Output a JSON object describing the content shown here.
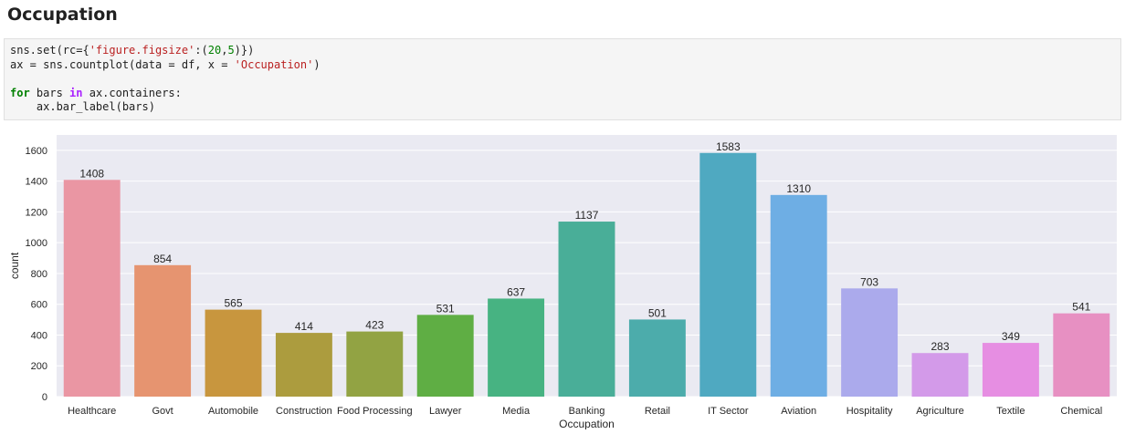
{
  "heading": "Occupation",
  "code": {
    "line1": {
      "a": "sns.set(rc={",
      "b": "'figure.figsize'",
      "c": ":(",
      "d": "20",
      "e": ",",
      "f": "5",
      "g": ")})"
    },
    "line2": {
      "a": "ax = sns.countplot(data = df, x = ",
      "b": "'Occupation'",
      "c": ")"
    },
    "line4": {
      "a": "for",
      "b": " bars ",
      "c": "in",
      "d": " ax.containers:"
    },
    "line5": {
      "a": "    ax.bar_label(bars)"
    }
  },
  "chart_data": {
    "type": "bar",
    "categories": [
      "Healthcare",
      "Govt",
      "Automobile",
      "Construction",
      "Food Processing",
      "Lawyer",
      "Media",
      "Banking",
      "Retail",
      "IT Sector",
      "Aviation",
      "Hospitality",
      "Agriculture",
      "Textile",
      "Chemical"
    ],
    "values": [
      1408,
      854,
      565,
      414,
      423,
      531,
      637,
      1137,
      501,
      1583,
      1310,
      703,
      283,
      349,
      541
    ],
    "labels": [
      "1408",
      "854",
      "565",
      "414",
      "423",
      "531",
      "637",
      "1137",
      "501",
      "1583",
      "1310",
      "703",
      "283",
      "349",
      "541"
    ],
    "colors": [
      "#ea96a3",
      "#e69470",
      "#c8963e",
      "#ac9c3e",
      "#92a343",
      "#5fae44",
      "#47b382",
      "#49ae98",
      "#4cacab",
      "#4fa9c1",
      "#6eaee4",
      "#abaaec",
      "#d39ae9",
      "#e68ee2",
      "#e790c2"
    ],
    "xlabel": "Occupation",
    "ylabel": "count",
    "ylim": [
      0,
      1700
    ],
    "yticks": [
      0,
      200,
      400,
      600,
      800,
      1000,
      1200,
      1400,
      1600
    ],
    "ytick_labels": [
      "0",
      "200",
      "400",
      "600",
      "800",
      "1000",
      "1200",
      "1400",
      "1600"
    ],
    "grid": true,
    "background": "#eaeaf2"
  }
}
